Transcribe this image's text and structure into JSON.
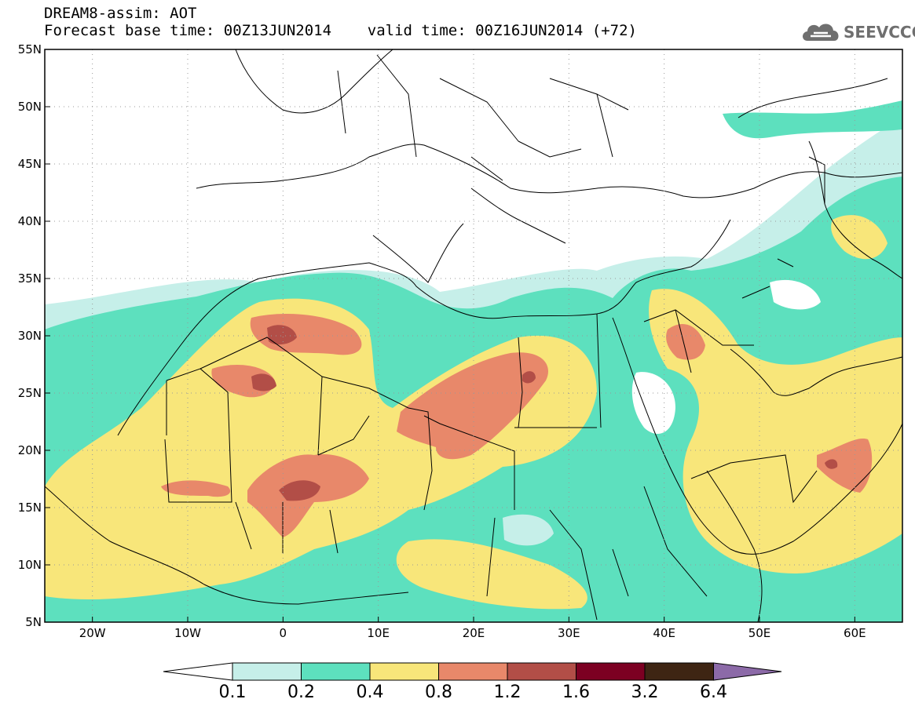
{
  "title": {
    "line1": "DREAM8-assim: AOT",
    "line2": "Forecast base time: 00Z13JUN2014    valid time: 00Z16JUN2014 (+72)"
  },
  "logo": {
    "text": "SEEVCCC",
    "icon": "cloud-icon"
  },
  "map": {
    "lon_range": [
      -25,
      65
    ],
    "lat_range": [
      5,
      55
    ],
    "lon_ticks": [
      {
        "value": -20,
        "label": "20W"
      },
      {
        "value": -10,
        "label": "10W"
      },
      {
        "value": 0,
        "label": "0"
      },
      {
        "value": 10,
        "label": "10E"
      },
      {
        "value": 20,
        "label": "20E"
      },
      {
        "value": 30,
        "label": "30E"
      },
      {
        "value": 40,
        "label": "40E"
      },
      {
        "value": 50,
        "label": "50E"
      },
      {
        "value": 60,
        "label": "60E"
      }
    ],
    "lat_ticks": [
      {
        "value": 5,
        "label": "5N"
      },
      {
        "value": 10,
        "label": "10N"
      },
      {
        "value": 15,
        "label": "15N"
      },
      {
        "value": 20,
        "label": "20N"
      },
      {
        "value": 25,
        "label": "25N"
      },
      {
        "value": 30,
        "label": "30N"
      },
      {
        "value": 35,
        "label": "35N"
      },
      {
        "value": 40,
        "label": "40N"
      },
      {
        "value": 45,
        "label": "45N"
      },
      {
        "value": 50,
        "label": "50N"
      },
      {
        "value": 55,
        "label": "55N"
      }
    ],
    "grid": "dotted"
  },
  "colorbar": {
    "bins": [
      {
        "from": 0.1,
        "to": 0.2,
        "color": "#c6efe9"
      },
      {
        "from": 0.2,
        "to": 0.4,
        "color": "#5de0be"
      },
      {
        "from": 0.4,
        "to": 0.8,
        "color": "#f8e67a"
      },
      {
        "from": 0.8,
        "to": 1.2,
        "color": "#e8886a"
      },
      {
        "from": 1.2,
        "to": 1.6,
        "color": "#b24e47"
      },
      {
        "from": 1.6,
        "to": 3.2,
        "color": "#7c0022"
      },
      {
        "from": 3.2,
        "to": 6.4,
        "color": "#3e2513"
      }
    ],
    "under_color": "#ffffff",
    "over_color": "#8c6aa8",
    "labels": [
      "0.1",
      "0.2",
      "0.4",
      "0.8",
      "1.2",
      "1.6",
      "3.2",
      "6.4"
    ]
  }
}
